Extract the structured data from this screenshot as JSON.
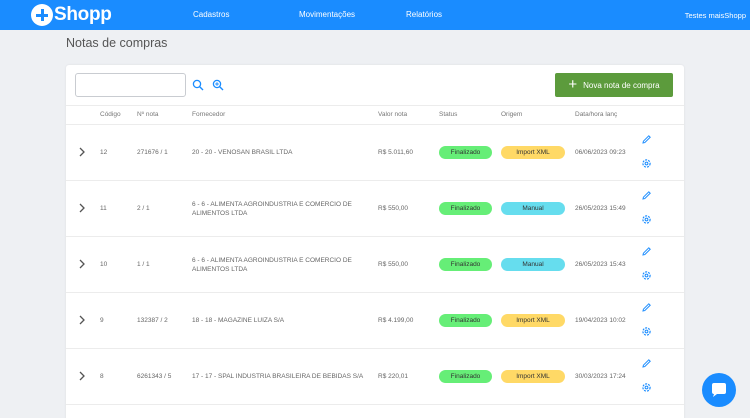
{
  "app": {
    "logo_text": "Shopp",
    "account": "Testes maisShopp"
  },
  "nav": [
    {
      "label": "Cadastros"
    },
    {
      "label": "Movimentações"
    },
    {
      "label": "Relatórios"
    }
  ],
  "page": {
    "title": "Notas de compras"
  },
  "toolbar": {
    "search_placeholder": "",
    "new_button": "Nova nota de compra"
  },
  "table": {
    "headers": {
      "codigo": "Código",
      "nota": "Nº nota",
      "fornecedor": "Fornecedor",
      "valor": "Valor nota",
      "status": "Status",
      "origem": "Origem",
      "datahora": "Data/hora lanç"
    },
    "rows": [
      {
        "codigo": "12",
        "nota": "271676 / 1",
        "fornecedor": "20 - 20 - VENOSAN BRASIL LTDA",
        "valor": "R$ 5.011,60",
        "status": "Finalizado",
        "origem": "Import XML",
        "datahora": "06/06/2023 09:23"
      },
      {
        "codigo": "11",
        "nota": "2 / 1",
        "fornecedor": "6 - 6 - ALIMENTA AGROINDUSTRIA E COMERCIO DE ALIMENTOS LTDA",
        "valor": "R$ 550,00",
        "status": "Finalizado",
        "origem": "Manual",
        "datahora": "26/05/2023 15:49"
      },
      {
        "codigo": "10",
        "nota": "1 / 1",
        "fornecedor": "6 - 6 - ALIMENTA AGROINDUSTRIA E COMERCIO DE ALIMENTOS LTDA",
        "valor": "R$ 550,00",
        "status": "Finalizado",
        "origem": "Manual",
        "datahora": "26/05/2023 15:43"
      },
      {
        "codigo": "9",
        "nota": "132387 / 2",
        "fornecedor": "18 - 18 - MAGAZINE LUIZA S/A",
        "valor": "R$ 4.199,00",
        "status": "Finalizado",
        "origem": "Import XML",
        "datahora": "19/04/2023 10:02"
      },
      {
        "codigo": "8",
        "nota": "6261343 / 5",
        "fornecedor": "17 - 17 - SPAL INDUSTRIA BRASILEIRA DE BEBIDAS S/A",
        "valor": "R$ 220,01",
        "status": "Finalizado",
        "origem": "Import XML",
        "datahora": "30/03/2023 17:24"
      }
    ]
  },
  "colors": {
    "primary": "#1a8cff",
    "button_green": "#5c9b3c",
    "status_finalizado": "#66ee77",
    "origem_import_xml": "#ffd966",
    "origem_manual": "#66ddee"
  },
  "icons": {
    "search": "search-icon",
    "zoom_in": "zoom-in-icon",
    "plus": "plus-icon",
    "expand": "chevron-right-icon",
    "edit": "pencil-icon",
    "settings": "gear-icon",
    "chat": "chat-icon"
  }
}
